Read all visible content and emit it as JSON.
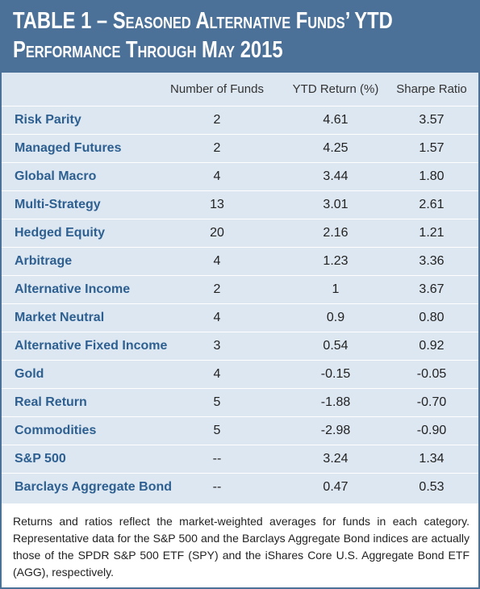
{
  "header": {
    "title": "TABLE 1 – Seasoned Alternative Funds’ YTD Performance Through May 2015"
  },
  "table": {
    "columns": [
      "",
      "Number of Funds",
      "YTD Return (%)",
      "Sharpe Ratio"
    ],
    "rows": [
      [
        "Risk Parity",
        "2",
        "4.61",
        "3.57"
      ],
      [
        "Managed Futures",
        "2",
        "4.25",
        "1.57"
      ],
      [
        "Global Macro",
        "4",
        "3.44",
        "1.80"
      ],
      [
        "Multi-Strategy",
        "13",
        "3.01",
        "2.61"
      ],
      [
        "Hedged Equity",
        "20",
        "2.16",
        "1.21"
      ],
      [
        "Arbitrage",
        "4",
        "1.23",
        "3.36"
      ],
      [
        "Alternative Income",
        "2",
        "1",
        "3.67"
      ],
      [
        "Market Neutral",
        "4",
        "0.9",
        "0.80"
      ],
      [
        "Alternative Fixed Income",
        "3",
        "0.54",
        "0.92"
      ],
      [
        "Gold",
        "4",
        "-0.15",
        "-0.05"
      ],
      [
        "Real Return",
        "5",
        "-1.88",
        "-0.70"
      ],
      [
        "Commodities",
        "5",
        "-2.98",
        "-0.90"
      ],
      [
        "S&P 500",
        "--",
        "3.24",
        "1.34"
      ],
      [
        "Barclays Aggregate Bond",
        "--",
        "0.47",
        "0.53"
      ]
    ]
  },
  "footnote": "Returns and ratios reflect the market-weighted averages for funds in each category. Representative data for the S&P 500 and the Barclays Aggregate Bond indices are actually those of the SPDR S&P 500 ETF (SPY) and the iShares Core U.S. Aggregate Bond ETF (AGG), respectively."
}
